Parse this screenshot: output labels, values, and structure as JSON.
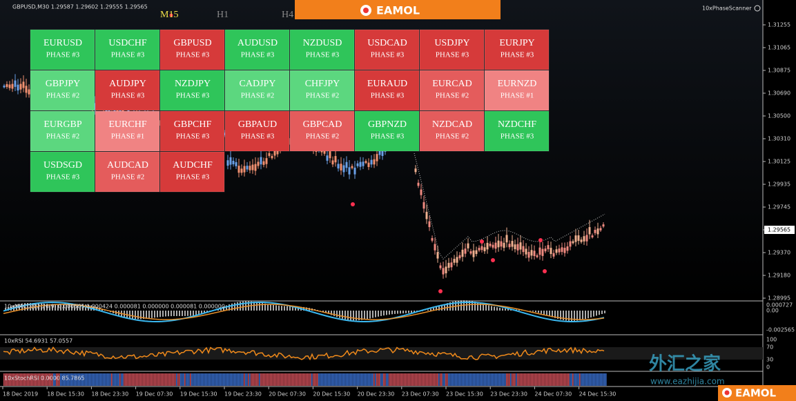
{
  "header": {
    "symbol_info": "GBPUSD,M30  1.29587 1.29602 1.29555 1.29565",
    "timeframes": [
      "M15",
      "H1",
      "H4"
    ],
    "banner": "EAMOL",
    "indicator_name": "10xPhaseScanner"
  },
  "scanner": {
    "cells": [
      {
        "pair": "EURUSD",
        "phase": "PHASE #3",
        "color": "#2fc55a"
      },
      {
        "pair": "USDCHF",
        "phase": "PHASE #3",
        "color": "#2fc55a"
      },
      {
        "pair": "GBPUSD",
        "phase": "PHASE #3",
        "color": "#d63a3a"
      },
      {
        "pair": "AUDUSD",
        "phase": "PHASE #3",
        "color": "#2fc55a"
      },
      {
        "pair": "NZDUSD",
        "phase": "PHASE #3",
        "color": "#2fc55a"
      },
      {
        "pair": "USDCAD",
        "phase": "PHASE #3",
        "color": "#d63a3a"
      },
      {
        "pair": "USDJPY",
        "phase": "PHASE #3",
        "color": "#d63a3a"
      },
      {
        "pair": "EURJPY",
        "phase": "PHASE #3",
        "color": "#d63a3a"
      },
      {
        "pair": "GBPJPY",
        "phase": "PHASE #2",
        "color": "#5cd77f"
      },
      {
        "pair": "AUDJPY",
        "phase": "PHASE #3",
        "color": "#d63a3a"
      },
      {
        "pair": "NZDJPY",
        "phase": "PHASE #3",
        "color": "#2fc55a"
      },
      {
        "pair": "CADJPY",
        "phase": "PHASE #2",
        "color": "#5cd77f"
      },
      {
        "pair": "CHFJPY",
        "phase": "PHASE #2",
        "color": "#5cd77f"
      },
      {
        "pair": "EURAUD",
        "phase": "PHASE #3",
        "color": "#d63a3a"
      },
      {
        "pair": "EURCAD",
        "phase": "PHASE #2",
        "color": "#e45c5c"
      },
      {
        "pair": "EURNZD",
        "phase": "PHASE #1",
        "color": "#f08383"
      },
      {
        "pair": "EURGBP",
        "phase": "PHASE #2",
        "color": "#5cd77f"
      },
      {
        "pair": "EURCHF",
        "phase": "PHASE #1",
        "color": "#f08383"
      },
      {
        "pair": "GBPCHF",
        "phase": "PHASE #3",
        "color": "#d63a3a"
      },
      {
        "pair": "GBPAUD",
        "phase": "PHASE #3",
        "color": "#d63a3a"
      },
      {
        "pair": "GBPCAD",
        "phase": "PHASE #2",
        "color": "#e45c5c"
      },
      {
        "pair": "GBPNZD",
        "phase": "PHASE #3",
        "color": "#2fc55a"
      },
      {
        "pair": "NZDCAD",
        "phase": "PHASE #2",
        "color": "#e45c5c"
      },
      {
        "pair": "NZDCHF",
        "phase": "PHASE #3",
        "color": "#2fc55a"
      },
      {
        "pair": "USDSGD",
        "phase": "PHASE #3",
        "color": "#2fc55a"
      },
      {
        "pair": "AUDCAD",
        "phase": "PHASE #2",
        "color": "#e45c5c"
      },
      {
        "pair": "AUDCHF",
        "phase": "PHASE #3",
        "color": "#d63a3a"
      }
    ]
  },
  "price_axis": {
    "labels": [
      "1.31255",
      "1.31065",
      "1.30875",
      "1.30690",
      "1.30500",
      "1.30310",
      "1.30125",
      "1.29935",
      "1.29745",
      "1.29565",
      "1.29370",
      "1.29180",
      "1.28995"
    ],
    "current": "1.29565"
  },
  "macd": {
    "label": "10xMACD(12,26,9) 0.000505 0.000424 0.000081 0.000000 0.000081 0.000000",
    "axis": [
      "0.000727",
      "0.00",
      "-0.002565"
    ]
  },
  "rsi": {
    "label": "10xRSI 54.6931 57.0557",
    "axis": [
      "100",
      "70",
      "30",
      "0"
    ]
  },
  "stoch": {
    "label": "10xStochRSI 0.0000 85.7865"
  },
  "time_axis": {
    "labels": [
      "18 Dec 2019",
      "18 Dec 15:30",
      "18 Dec 23:30",
      "19 Dec 07:30",
      "19 Dec 15:30",
      "19 Dec 23:30",
      "20 Dec 07:30",
      "20 Dec 15:30",
      "20 Dec 23:30",
      "23 Dec 07:30",
      "23 Dec 15:30",
      "23 Dec 23:30",
      "24 Dec 07:30",
      "24 Dec 15:30"
    ]
  },
  "watermark": {
    "title": "外汇之家",
    "url": "www.eazhijia.com",
    "logo": "EAMOL"
  }
}
